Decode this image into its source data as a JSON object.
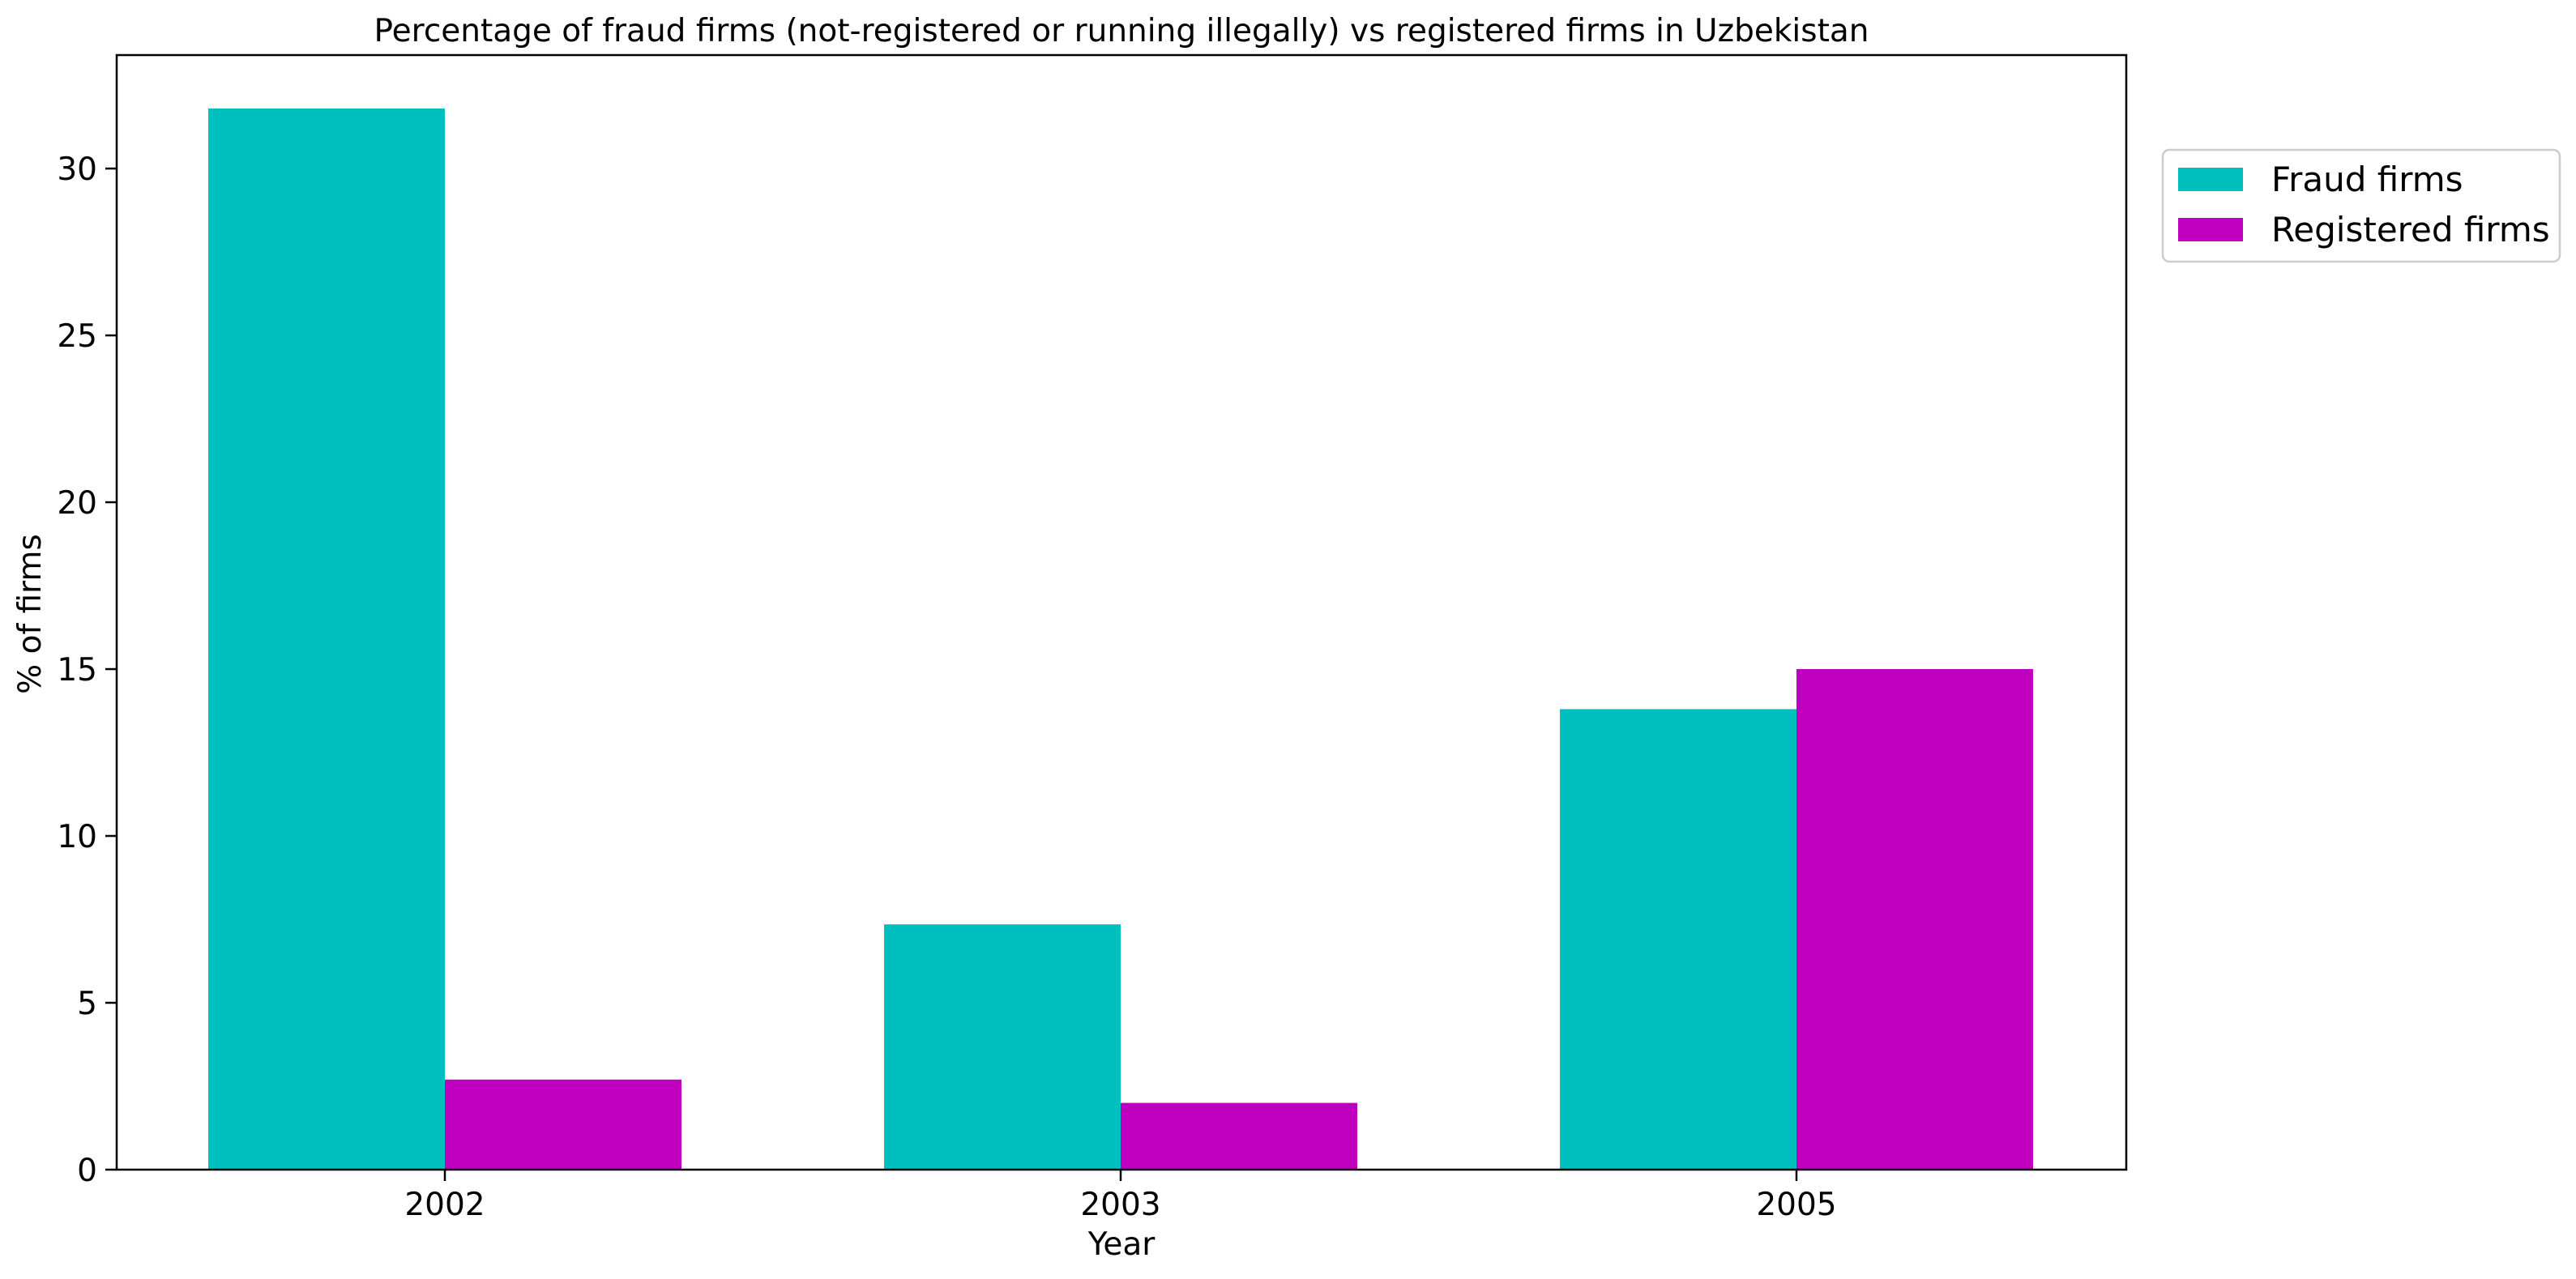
{
  "chart_data": {
    "type": "bar",
    "title": "Percentage of fraud firms (not-registered or running illegally) vs registered firms in Uzbekistan",
    "xlabel": "Year",
    "ylabel": "% of firms",
    "categories": [
      "2002",
      "2003",
      "2005"
    ],
    "series": [
      {
        "name": "Fraud firms",
        "values": [
          31.8,
          7.35,
          13.8
        ],
        "color": "#00bfbf"
      },
      {
        "name": "Registered firms",
        "values": [
          2.7,
          2.0,
          15.0
        ],
        "color": "#bf00bf"
      }
    ],
    "ylim": [
      0,
      33.4
    ],
    "yticks": [
      0,
      5,
      10,
      15,
      20,
      25,
      30
    ],
    "grid": false,
    "legend_position": "outside-top-right"
  }
}
